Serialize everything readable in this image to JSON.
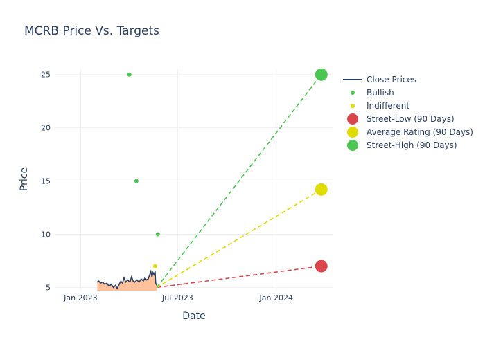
{
  "chart_data": {
    "type": "line",
    "title": "MCRB Price Vs. Targets",
    "xlabel": "Date",
    "ylabel": "Price",
    "xlim": [
      "2022-11-15",
      "2024-04-15"
    ],
    "ylim": [
      4.7,
      25.5
    ],
    "x_ticks": [
      {
        "date": "2023-01-01",
        "label": "Jan 2023"
      },
      {
        "date": "2023-07-01",
        "label": "Jul 2023"
      },
      {
        "date": "2024-01-01",
        "label": "Jan 2024"
      }
    ],
    "y_ticks": [
      5,
      10,
      15,
      20,
      25
    ],
    "grid": true,
    "legend_position": "right",
    "close_prices": {
      "name": "Close Prices",
      "color": "#2a3f5f",
      "fill_color": "#ffc09a",
      "points": [
        [
          "2023-02-01",
          5.5
        ],
        [
          "2023-02-04",
          5.6
        ],
        [
          "2023-02-07",
          5.4
        ],
        [
          "2023-02-11",
          5.5
        ],
        [
          "2023-02-15",
          5.3
        ],
        [
          "2023-02-19",
          5.4
        ],
        [
          "2023-02-23",
          5.1
        ],
        [
          "2023-02-27",
          5.3
        ],
        [
          "2023-03-03",
          5.0
        ],
        [
          "2023-03-07",
          5.2
        ],
        [
          "2023-03-10",
          4.9
        ],
        [
          "2023-03-14",
          5.3
        ],
        [
          "2023-03-17",
          5.6
        ],
        [
          "2023-03-20",
          5.4
        ],
        [
          "2023-03-23",
          5.9
        ],
        [
          "2023-03-26",
          5.5
        ],
        [
          "2023-03-30",
          5.7
        ],
        [
          "2023-04-03",
          5.5
        ],
        [
          "2023-04-06",
          6.0
        ],
        [
          "2023-04-09",
          5.6
        ],
        [
          "2023-04-12",
          5.5
        ],
        [
          "2023-04-16",
          5.7
        ],
        [
          "2023-04-20",
          5.5
        ],
        [
          "2023-04-24",
          5.8
        ],
        [
          "2023-04-28",
          5.6
        ],
        [
          "2023-05-01",
          5.9
        ],
        [
          "2023-05-04",
          5.7
        ],
        [
          "2023-05-07",
          5.8
        ],
        [
          "2023-05-10",
          6.2
        ],
        [
          "2023-05-12",
          6.5
        ],
        [
          "2023-05-14",
          6.0
        ],
        [
          "2023-05-16",
          6.4
        ],
        [
          "2023-05-18",
          6.2
        ],
        [
          "2023-05-20",
          6.5
        ],
        [
          "2023-05-21",
          5.4
        ],
        [
          "2023-05-23",
          5.2
        ]
      ]
    },
    "bullish": {
      "name": "Bullish",
      "color": "#4cc552",
      "points": [
        [
          "2023-04-02",
          25
        ],
        [
          "2023-04-15",
          15
        ],
        [
          "2023-05-25",
          10
        ]
      ]
    },
    "indifferent": {
      "name": "Indifferent",
      "color": "#e0dc00",
      "points": [
        [
          "2023-05-20",
          7
        ]
      ]
    },
    "targets": [
      {
        "name": "Street-Low (90 Days)",
        "color": "#d9464b",
        "from": [
          "2023-05-23",
          5.0
        ],
        "to": [
          "2024-03-25",
          7.0
        ]
      },
      {
        "name": "Average Rating (90 Days)",
        "color": "#e0dc00",
        "from": [
          "2023-05-23",
          5.0
        ],
        "to": [
          "2024-03-25",
          14.2
        ]
      },
      {
        "name": "Street-High (90 Days)",
        "color": "#4cc552",
        "from": [
          "2023-05-23",
          5.0
        ],
        "to": [
          "2024-03-25",
          25.0
        ]
      }
    ]
  }
}
